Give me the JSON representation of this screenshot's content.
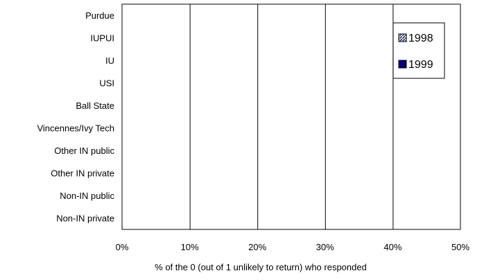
{
  "chart_data": {
    "type": "bar",
    "orientation": "horizontal",
    "title": "",
    "categories": [
      "Purdue",
      "IUPUI",
      "IU",
      "USI",
      "Ball State",
      "Vincennes/Ivy Tech",
      "Other IN public",
      "Other IN private",
      "Non-IN public",
      "Non-IN private"
    ],
    "series": [
      {
        "name": "1998",
        "values": [
          0,
          0,
          0,
          0,
          0,
          0,
          0,
          0,
          0,
          0
        ],
        "color": "#1a2a6c",
        "pattern": "hatched"
      },
      {
        "name": "1999",
        "values": [
          0,
          0,
          0,
          0,
          0,
          0,
          0,
          0,
          0,
          0
        ],
        "color": "#000080",
        "pattern": "solid"
      }
    ],
    "xlabel": "% of the 0 (out of 1 unlikely to return) who responded",
    "ylabel": "",
    "xlim": [
      0,
      0.5
    ],
    "xticks": [
      "0%",
      "10%",
      "20%",
      "30%",
      "40%",
      "50%"
    ],
    "xtick_values": [
      0,
      0.1,
      0.2,
      0.3,
      0.4,
      0.5
    ],
    "grid": "vertical",
    "legend_position": "top-right"
  }
}
